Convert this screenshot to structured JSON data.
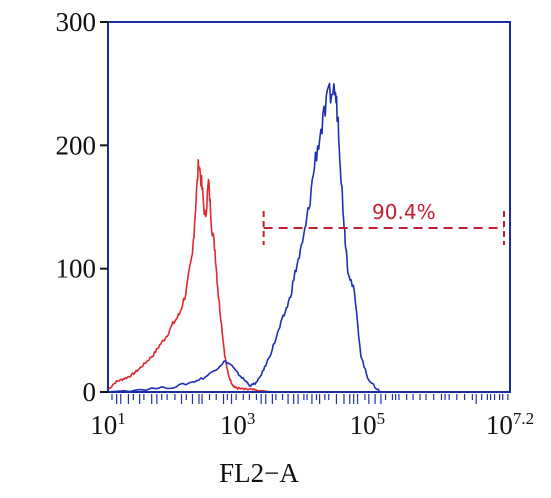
{
  "chart_data": {
    "type": "line",
    "xlabel": "FL2−A",
    "ylabel": "",
    "x_scale": "log10",
    "xlim": [
      10,
      15848932
    ],
    "ylim": [
      0,
      300
    ],
    "x_ticks": [
      {
        "base": "10",
        "exp": "1"
      },
      {
        "base": "10",
        "exp": "3"
      },
      {
        "base": "10",
        "exp": "5"
      },
      {
        "base": "10",
        "exp": "7.2"
      }
    ],
    "y_ticks": [
      "0",
      "100",
      "200",
      "300"
    ],
    "grid": false,
    "series": [
      {
        "color": "#e0282f",
        "x": [
          10,
          13,
          16,
          20,
          25,
          32,
          40,
          50,
          63,
          79,
          100,
          126,
          158,
          200,
          224,
          251,
          282,
          316,
          355,
          398,
          447,
          501,
          562,
          631,
          708,
          794,
          891,
          1000,
          1259,
          1585,
          1995,
          2512,
          3162
        ],
        "y": [
          2,
          8,
          10,
          12,
          15,
          20,
          25,
          30,
          38,
          45,
          55,
          63,
          80,
          110,
          150,
          188,
          165,
          140,
          170,
          135,
          115,
          80,
          55,
          30,
          15,
          8,
          4,
          3,
          2,
          2,
          1,
          1,
          0
        ]
      },
      {
        "color": "#1f2fb4",
        "x": [
          10,
          32,
          100,
          200,
          316,
          501,
          631,
          794,
          1000,
          1259,
          1585,
          1995,
          2512,
          3162,
          3981,
          5012,
          6310,
          7943,
          10000,
          12589,
          15849,
          19953,
          25119,
          31623,
          35481,
          39811,
          44668,
          50119,
          63096,
          79433,
          100000,
          125893,
          158489
        ],
        "y": [
          0,
          2,
          4,
          8,
          12,
          20,
          25,
          22,
          15,
          10,
          5,
          8,
          18,
          30,
          45,
          60,
          75,
          100,
          120,
          150,
          190,
          215,
          240,
          245,
          220,
          170,
          130,
          100,
          80,
          30,
          12,
          5,
          0
        ]
      }
    ],
    "gate": {
      "label": "90.4%",
      "color": "#c21f2f",
      "x_range": [
        2512,
        15848932
      ],
      "y": 133
    }
  }
}
